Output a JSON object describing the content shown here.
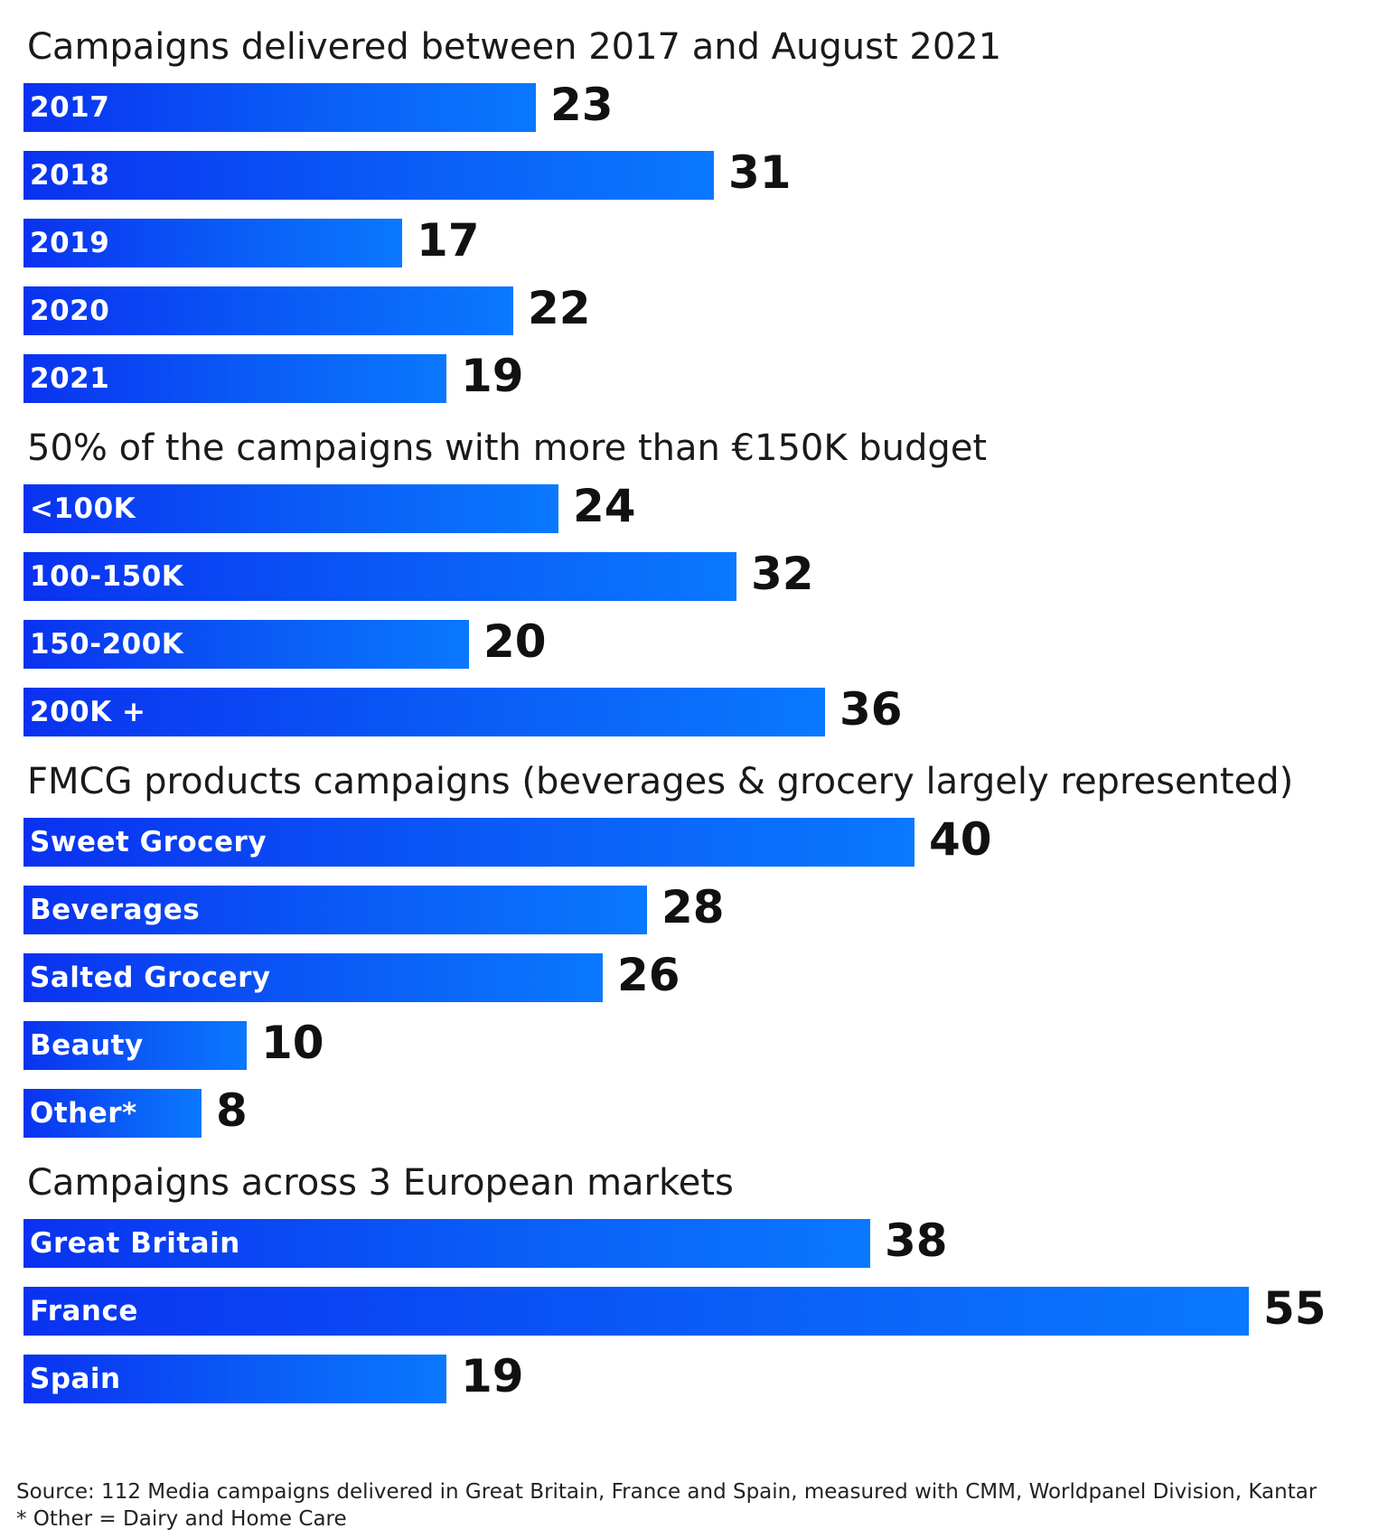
{
  "chart_data": [
    {
      "type": "bar",
      "orientation": "horizontal",
      "title": "Campaigns delivered between 2017 and August 2021",
      "categories": [
        "2017",
        "2018",
        "2019",
        "2020",
        "2021"
      ],
      "values": [
        23,
        31,
        17,
        22,
        19
      ]
    },
    {
      "type": "bar",
      "orientation": "horizontal",
      "title": "50% of the campaigns with more than €150K budget",
      "categories": [
        "<100K",
        "100-150K",
        "150-200K",
        "200K +"
      ],
      "values": [
        24,
        32,
        20,
        36
      ]
    },
    {
      "type": "bar",
      "orientation": "horizontal",
      "title": "FMCG products campaigns (beverages & grocery largely represented)",
      "categories": [
        "Sweet Grocery",
        "Beverages",
        "Salted Grocery",
        "Beauty",
        "Other*"
      ],
      "values": [
        40,
        28,
        26,
        10,
        8
      ]
    },
    {
      "type": "bar",
      "orientation": "horizontal",
      "title": "Campaigns across 3 European markets",
      "categories": [
        "Great Britain",
        "France",
        "Spain"
      ],
      "values": [
        38,
        55,
        19
      ]
    }
  ],
  "colors": {
    "bar_start": "#0a32f0",
    "bar_end": "#0a78ff",
    "value_text": "#111111",
    "bar_label_text": "#ffffff"
  },
  "footer": {
    "source": "Source: 112 Media campaigns delivered in Great Britain, France and Spain, measured with CMM, Worldpanel Division, Kantar",
    "note": "* Other = Dairy and Home Care"
  }
}
